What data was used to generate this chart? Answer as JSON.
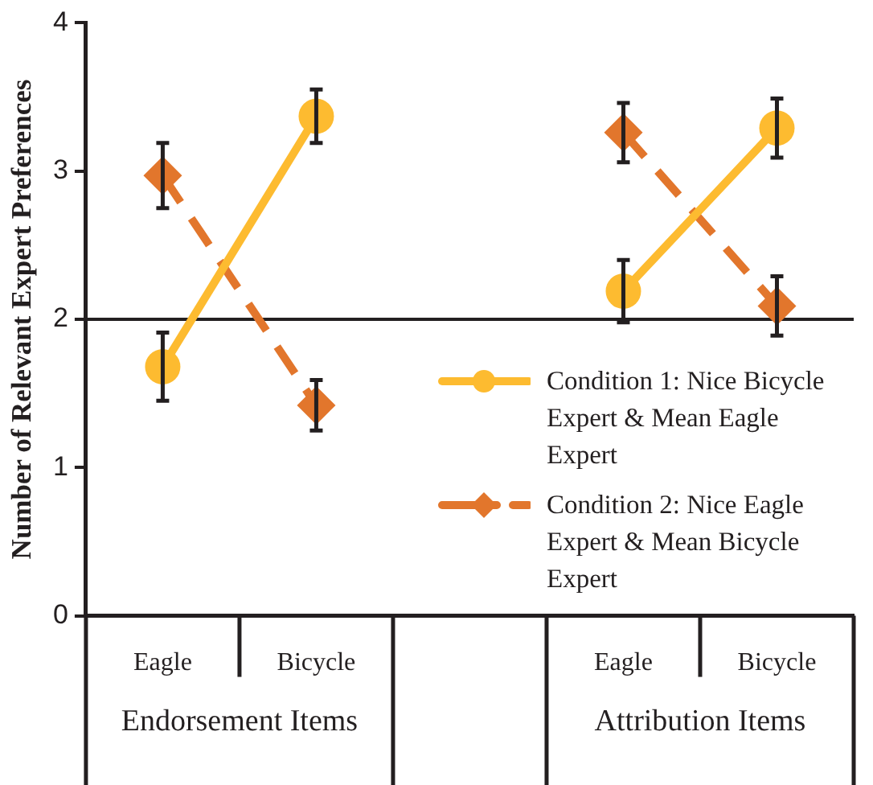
{
  "chart_data": {
    "type": "line",
    "ylabel": "Number of Relevant Expert Preferences",
    "categories": [
      "Eagle",
      "Bicycle",
      null,
      "Eagle",
      "Bicycle"
    ],
    "series": [
      {
        "name": "Condition 1: Nice Bicycle Expert & Mean Eagle Expert",
        "color": "#fdbb30",
        "marker": "circle",
        "line_style": "solid",
        "values": [
          1.68,
          3.37,
          null,
          2.19,
          3.29
        ],
        "errors": [
          0.23,
          0.18,
          null,
          0.21,
          0.2
        ]
      },
      {
        "name": "Condition 2: Nice Eagle Expert & Mean Bicycle Expert",
        "color": "#e2762c",
        "marker": "diamond",
        "line_style": "dashed",
        "values": [
          2.97,
          1.42,
          null,
          3.26,
          2.09
        ],
        "errors": [
          0.22,
          0.17,
          null,
          0.2,
          0.2
        ]
      }
    ],
    "ylim": [
      0,
      4
    ],
    "yticks": [
      0,
      1,
      2,
      3,
      4
    ],
    "grid": false,
    "legend": "bottom right",
    "ref_lines": [
      {
        "axis": "y",
        "value": 2,
        "color": "#231f20"
      }
    ],
    "annotations": [
      "Endorsement Items",
      "Attribution Items"
    ]
  }
}
